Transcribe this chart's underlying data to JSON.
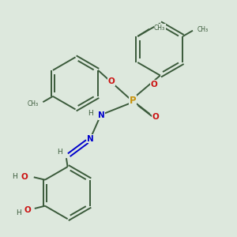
{
  "bg_color": "#dde8dd",
  "bond_color": "#3a5a3a",
  "P_color": "#c8920a",
  "O_color": "#cc1111",
  "N_color": "#0000cc",
  "line_width": 1.4,
  "figsize": [
    3.0,
    3.0
  ],
  "dpi": 100,
  "xlim": [
    0,
    9
  ],
  "ylim": [
    0,
    9
  ]
}
